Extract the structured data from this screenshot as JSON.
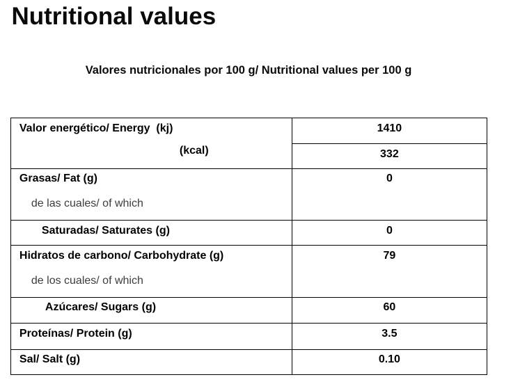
{
  "page": {
    "title": "Nutritional values",
    "subtitle": "Valores nutricionales por 100 g/ Nutritional values per 100 g"
  },
  "table": {
    "rows": [
      {
        "label": "Valor energético/ Energy  (kj)",
        "value": "1410"
      },
      {
        "label": "(kcal)",
        "value": "332"
      },
      {
        "label": "Grasas/ Fat (g)",
        "sublabel": "de las cuales/ of which",
        "value": "0"
      },
      {
        "label": "Saturadas/ Saturates (g)",
        "value": "0"
      },
      {
        "label": "Hidratos de carbono/ Carbohydrate (g)",
        "sublabel": "de los cuales/ of which",
        "value": "79"
      },
      {
        "label": "Azúcares/ Sugars (g)",
        "value": "60"
      },
      {
        "label": "Proteínas/ Protein (g)",
        "value": "3.5"
      },
      {
        "label": "Sal/ Salt (g)",
        "value": "0.10"
      }
    ]
  },
  "colors": {
    "background": "#ffffff",
    "text": "#0a0a0a",
    "muted_text": "#3d3d3d",
    "table_border": "#000000"
  }
}
